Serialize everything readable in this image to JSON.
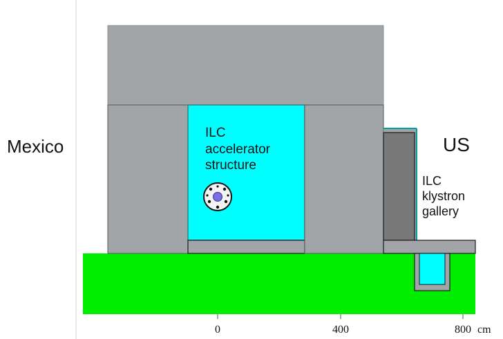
{
  "labels": {
    "mexico": "Mexico",
    "us": "US",
    "accelerator": [
      "ILC",
      "accelerator",
      "structure"
    ],
    "klystron": [
      "ILC",
      "klystron",
      "gallery"
    ]
  },
  "axis": {
    "ticks": [
      "0",
      "400",
      "800"
    ],
    "unit": "cm"
  },
  "colors": {
    "concrete": "#a2a5a7",
    "concrete_dark": "#787878",
    "tunnel": "#00ffff",
    "ground": "#00ee00",
    "outline": "#1a1a1a",
    "edge": "#3d7f80"
  },
  "icons": {
    "beam_pipe": "accelerator-cross-section-icon"
  }
}
